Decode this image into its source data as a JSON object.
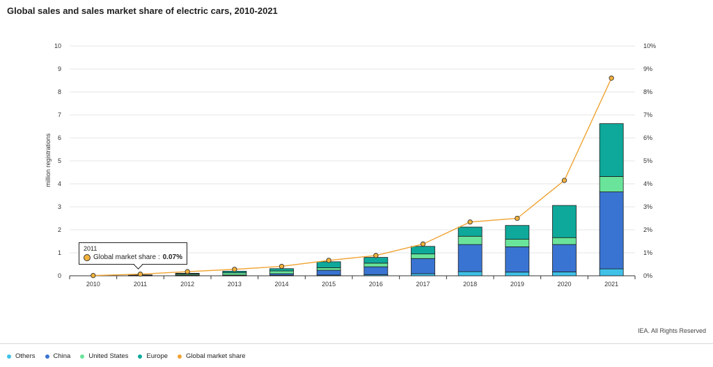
{
  "chart_data": {
    "type": "bar",
    "title": "Global sales and sales market share of electric cars, 2010-2021",
    "categories": [
      "2010",
      "2011",
      "2012",
      "2013",
      "2014",
      "2015",
      "2016",
      "2017",
      "2018",
      "2019",
      "2020",
      "2021"
    ],
    "ylabel": "million registrations",
    "ylim": [
      0,
      10
    ],
    "yticks": [
      "0",
      "1",
      "2",
      "3",
      "4",
      "5",
      "6",
      "7",
      "8",
      "9",
      "10"
    ],
    "y2lim": [
      0,
      10
    ],
    "y2ticks": [
      "0%",
      "1%",
      "2%",
      "3%",
      "4%",
      "5%",
      "6%",
      "7%",
      "8%",
      "9%",
      "10%"
    ],
    "stacked": true,
    "series": [
      {
        "name": "Others",
        "color": "#3fc1e8",
        "values": [
          0.0,
          0.0,
          0.01,
          0.01,
          0.02,
          0.03,
          0.05,
          0.09,
          0.18,
          0.16,
          0.17,
          0.3
        ]
      },
      {
        "name": "China",
        "color": "#3a74d2",
        "values": [
          0.0,
          0.01,
          0.02,
          0.02,
          0.07,
          0.21,
          0.34,
          0.66,
          1.18,
          1.1,
          1.19,
          3.35
        ]
      },
      {
        "name": "United States",
        "color": "#6ae49a",
        "values": [
          0.0,
          0.02,
          0.05,
          0.1,
          0.12,
          0.11,
          0.16,
          0.2,
          0.36,
          0.33,
          0.3,
          0.67
        ]
      },
      {
        "name": "Europe",
        "color": "#0ea99b",
        "values": [
          0.0,
          0.01,
          0.03,
          0.07,
          0.1,
          0.26,
          0.25,
          0.33,
          0.4,
          0.6,
          1.4,
          2.3
        ]
      }
    ],
    "line_series": {
      "name": "Global market share",
      "color": "#f0a332",
      "axis": "right",
      "values": [
        0.01,
        0.07,
        0.18,
        0.28,
        0.41,
        0.67,
        0.88,
        1.38,
        2.34,
        2.5,
        4.15,
        8.6
      ]
    },
    "tooltip": {
      "year": "2011",
      "label": "Global market share :",
      "value": "0.07%"
    },
    "grid": true,
    "legend": "bottom-left"
  },
  "credit": "IEA. All Rights Reserved"
}
